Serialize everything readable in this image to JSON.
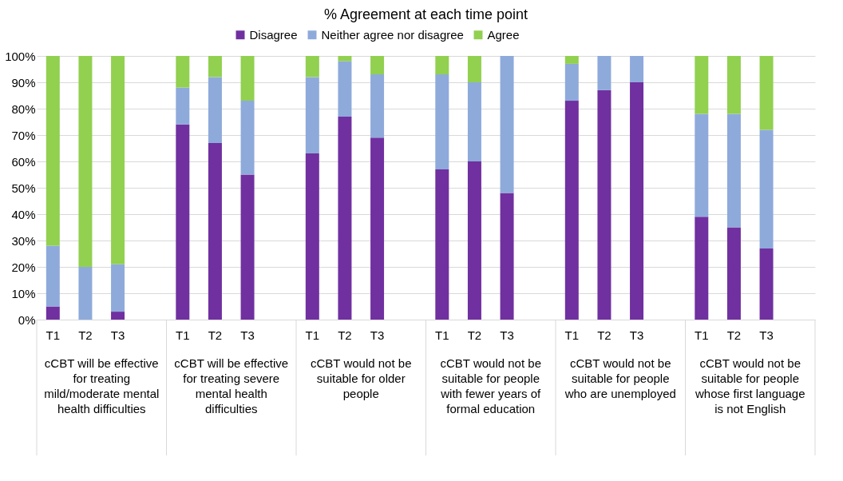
{
  "chart_data": {
    "type": "bar",
    "title": "% Agreement at each time point",
    "stacked": true,
    "legend": "top",
    "grid": "y",
    "categories": [
      "T1",
      "T2",
      "T3",
      null,
      "T1",
      "T2",
      "T3",
      null,
      "T1",
      "T2",
      "T3",
      null,
      "T1",
      "T2",
      "T3",
      null,
      "T1",
      "T2",
      "T3",
      null,
      "T1",
      "T2",
      "T3",
      null
    ],
    "series": [
      {
        "name": "Disagree",
        "color": "#7030a0",
        "values": [
          5,
          0,
          3,
          null,
          74,
          67,
          55,
          null,
          63,
          77,
          69,
          null,
          57,
          60,
          48,
          null,
          83,
          87,
          90,
          null,
          39,
          35,
          27,
          null
        ]
      },
      {
        "name": "Neither agree nor disagree",
        "color": "#8eaadb",
        "values": [
          23,
          20,
          18,
          null,
          14,
          25,
          28,
          null,
          29,
          21,
          24,
          null,
          36,
          30,
          52,
          null,
          14,
          13,
          10,
          null,
          39,
          43,
          45,
          null
        ]
      },
      {
        "name": "Agree",
        "color": "#92d050",
        "values": [
          72,
          80,
          79,
          null,
          12,
          8,
          17,
          null,
          8,
          2,
          7,
          null,
          7,
          10,
          0,
          null,
          3,
          0,
          0,
          null,
          22,
          22,
          28,
          null
        ]
      }
    ],
    "ylim": [
      0,
      100
    ],
    "yticks": [
      {
        "value": 0,
        "label": "0%"
      },
      {
        "value": 10,
        "label": "10%"
      },
      {
        "value": 20,
        "label": "20%"
      },
      {
        "value": 30,
        "label": "30%"
      },
      {
        "value": 40,
        "label": "40%"
      },
      {
        "value": 50,
        "label": "50%"
      },
      {
        "value": 60,
        "label": "60%"
      },
      {
        "value": 70,
        "label": "70%"
      },
      {
        "value": 80,
        "label": "80%"
      },
      {
        "value": 90,
        "label": "90%"
      },
      {
        "value": 100,
        "label": "100%"
      }
    ],
    "annotations": [
      "cCBT will be effective for treating mild/moderate mental health difficulties",
      "cCBT will be effective for treating severe mental health difficulties",
      "cCBT would not be suitable for older people",
      "cCBT would not be suitable for people with fewer years of formal education",
      "cCBT would not be suitable for people who are unemployed",
      "cCBT would not be suitable for people whose first language is not English"
    ]
  }
}
